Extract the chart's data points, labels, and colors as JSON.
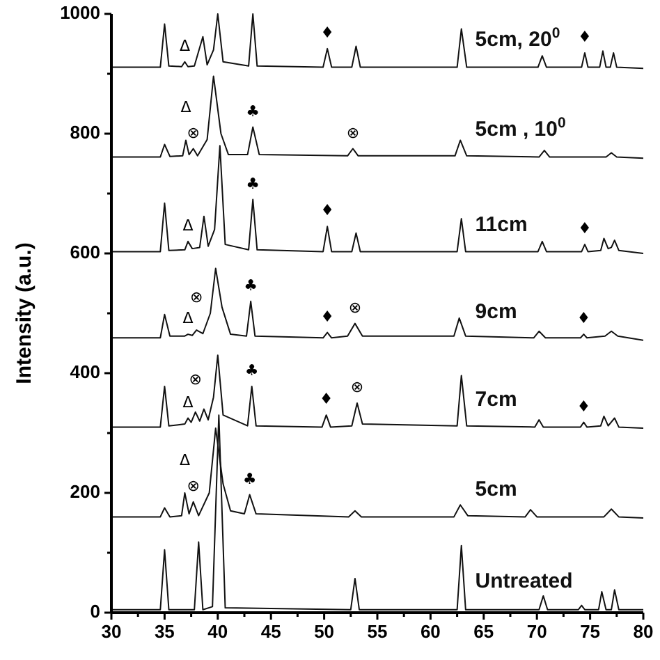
{
  "chart_data": {
    "type": "line",
    "ylabel": "Intensity (a.u.)",
    "xlim": [
      30,
      80
    ],
    "ylim": [
      0,
      1000
    ],
    "xticks": [
      30,
      {
        "value": 32.5,
        "label": null
      },
      35,
      {
        "value": 37.5,
        "label": null
      },
      40,
      {
        "value": 42.5,
        "label": null
      },
      45,
      {
        "value": 47.5,
        "label": null
      },
      50,
      {
        "value": 52.5,
        "label": null
      },
      55,
      {
        "value": 57.5,
        "label": null
      },
      60,
      {
        "value": 62.5,
        "label": null
      },
      65,
      {
        "value": 67.5,
        "label": null
      },
      70,
      {
        "value": 72.5,
        "label": null
      },
      75,
      {
        "value": 77.5,
        "label": null
      },
      80
    ],
    "yticks": [
      0,
      {
        "value": 100,
        "label": null
      },
      200,
      {
        "value": 300,
        "label": null
      },
      400,
      {
        "value": 500,
        "label": null
      },
      600,
      {
        "value": 700,
        "label": null
      },
      800,
      {
        "value": 900,
        "label": null
      },
      1000
    ],
    "series": [
      {
        "name": "Untreated",
        "color": "#111111",
        "x": [
          30,
          34.6,
          35,
          35.4,
          37.8,
          38.2,
          38.6,
          39.5,
          40.1,
          40.7,
          52.5,
          52.9,
          53.3,
          62.5,
          62.9,
          63.3,
          70.2,
          70.6,
          71.0,
          73.9,
          74.2,
          74.5,
          75.8,
          76.1,
          76.5,
          77.0,
          77.3,
          77.7,
          80
        ],
        "values": [
          5,
          5,
          105,
          5,
          5,
          118,
          5,
          10,
          330,
          8,
          5,
          57,
          5,
          5,
          112,
          5,
          5,
          28,
          5,
          5,
          12,
          5,
          5,
          35,
          5,
          5,
          38,
          5,
          5
        ]
      },
      {
        "name": "5cm",
        "color": "#111111",
        "x": [
          30,
          34.6,
          35,
          35.5,
          36.6,
          36.9,
          37.3,
          37.7,
          38.2,
          39.2,
          39.8,
          40.5,
          41.2,
          42.5,
          43.0,
          43.6,
          52.3,
          52.9,
          53.5,
          62.2,
          62.8,
          63.5,
          68.9,
          69.4,
          70,
          76.3,
          77,
          77.7,
          80
        ],
        "values": [
          160,
          160,
          175,
          160,
          162,
          200,
          165,
          185,
          162,
          200,
          308,
          215,
          170,
          165,
          197,
          165,
          160,
          170,
          160,
          160,
          180,
          162,
          160,
          172,
          160,
          160,
          173,
          160,
          158
        ]
      },
      {
        "name": "7cm",
        "color": "#111111",
        "x": [
          30,
          34.6,
          35,
          35.4,
          36.9,
          37.2,
          37.5,
          37.9,
          38.3,
          38.7,
          39.1,
          39.6,
          40.0,
          40.5,
          42.8,
          43.2,
          43.6,
          49.8,
          50.2,
          50.6,
          52.6,
          53.1,
          53.6,
          62.5,
          62.9,
          63.4,
          69.8,
          70.2,
          70.6,
          74.1,
          74.4,
          74.7,
          76.0,
          76.3,
          76.7,
          77.3,
          77.7,
          80
        ],
        "values": [
          310,
          310,
          378,
          312,
          315,
          325,
          318,
          335,
          320,
          340,
          322,
          360,
          430,
          330,
          312,
          378,
          312,
          310,
          330,
          310,
          312,
          350,
          315,
          312,
          396,
          312,
          310,
          322,
          310,
          310,
          318,
          310,
          312,
          328,
          312,
          325,
          310,
          308
        ]
      },
      {
        "name": "9cm",
        "color": "#111111",
        "x": [
          30,
          34.6,
          35,
          35.5,
          36.9,
          37.2,
          37.6,
          38.0,
          38.6,
          39.3,
          39.8,
          40.4,
          41.2,
          42.7,
          43.1,
          43.5,
          49.9,
          50.3,
          50.7,
          52.2,
          52.9,
          53.6,
          62.2,
          62.7,
          63.3,
          69.7,
          70.2,
          70.8,
          74.1,
          74.4,
          74.7,
          76.4,
          77,
          77.6,
          80
        ],
        "values": [
          459,
          459,
          498,
          462,
          462,
          465,
          463,
          472,
          466,
          500,
          575,
          510,
          465,
          462,
          520,
          462,
          459,
          468,
          459,
          462,
          483,
          462,
          462,
          492,
          462,
          459,
          470,
          459,
          459,
          465,
          459,
          462,
          470,
          462,
          455
        ]
      },
      {
        "name": "11cm",
        "color": "#111111",
        "x": [
          30,
          34.6,
          35,
          35.4,
          36.9,
          37.2,
          37.6,
          38.3,
          38.7,
          39.1,
          39.7,
          40.2,
          40.7,
          42.9,
          43.3,
          43.7,
          49.9,
          50.3,
          50.7,
          52.6,
          53.0,
          53.4,
          62.5,
          62.9,
          63.3,
          70.1,
          70.5,
          70.9,
          74.2,
          74.5,
          74.8,
          76.0,
          76.3,
          76.7,
          77.0,
          77.3,
          77.7,
          80
        ],
        "values": [
          603,
          603,
          684,
          605,
          606,
          620,
          608,
          610,
          662,
          612,
          640,
          780,
          615,
          606,
          690,
          606,
          603,
          645,
          603,
          603,
          634,
          603,
          603,
          658,
          603,
          603,
          620,
          603,
          603,
          615,
          603,
          605,
          625,
          608,
          610,
          622,
          605,
          600
        ]
      },
      {
        "name": "5cm , 10$^{0}$",
        "color": "#111111",
        "x": [
          30,
          34.6,
          35,
          35.5,
          36.7,
          37.0,
          37.3,
          37.7,
          38.1,
          39.0,
          39.6,
          40.3,
          41.0,
          42.8,
          43.3,
          43.9,
          52.2,
          52.7,
          53.2,
          62.3,
          62.8,
          63.4,
          70.2,
          70.7,
          71.2,
          76.5,
          77,
          77.5,
          80
        ],
        "values": [
          761,
          761,
          782,
          762,
          763,
          789,
          765,
          775,
          763,
          790,
          896,
          800,
          765,
          765,
          811,
          765,
          763,
          775,
          763,
          763,
          789,
          763,
          761,
          772,
          761,
          761,
          768,
          761,
          759
        ]
      },
      {
        "name": "5cm, 20$^{0}$",
        "color": "#111111",
        "x": [
          30,
          34.6,
          35,
          35.4,
          36.6,
          36.9,
          37.2,
          37.8,
          38.6,
          39.0,
          39.6,
          40.0,
          40.5,
          42.9,
          43.3,
          43.7,
          49.9,
          50.3,
          50.7,
          52.6,
          53.0,
          53.4,
          62.5,
          62.9,
          63.4,
          70.1,
          70.5,
          70.9,
          74.2,
          74.5,
          74.8,
          75.9,
          76.2,
          76.5,
          76.9,
          77.2,
          77.5,
          80
        ],
        "values": [
          911,
          911,
          983,
          913,
          912,
          920,
          912,
          913,
          962,
          915,
          940,
          1000,
          920,
          913,
          1000,
          913,
          911,
          942,
          911,
          911,
          946,
          911,
          911,
          975,
          911,
          911,
          930,
          911,
          911,
          935,
          911,
          911,
          938,
          911,
          911,
          935,
          911,
          909
        ]
      }
    ],
    "annotations": [
      {
        "text": "Δ",
        "x": 36.9,
        "y": 920
      },
      {
        "text": "♦",
        "x": 50.3,
        "y": 942
      },
      {
        "text": "♦",
        "x": 74.5,
        "y": 935
      },
      {
        "text": "⊗",
        "x": 37.7,
        "y": 775
      },
      {
        "text": "Δ",
        "x": 37.0,
        "y": 789
      },
      {
        "text": "♣",
        "x": 43.3,
        "y": 811
      },
      {
        "text": "⊗",
        "x": 52.7,
        "y": 775
      },
      {
        "text": "Δ",
        "x": 37.2,
        "y": 620
      },
      {
        "text": "♣",
        "x": 43.3,
        "y": 690
      },
      {
        "text": "♦",
        "x": 50.3,
        "y": 645
      },
      {
        "text": "♦",
        "x": 74.5,
        "y": 615
      },
      {
        "text": "Δ",
        "x": 37.2,
        "y": 465
      },
      {
        "text": "⊗",
        "x": 38.0,
        "y": 472
      },
      {
        "text": "♣",
        "x": 43.1,
        "y": 520
      },
      {
        "text": "♦",
        "x": 50.3,
        "y": 468
      },
      {
        "text": "⊗",
        "x": 52.9,
        "y": 483
      },
      {
        "text": "♦",
        "x": 74.4,
        "y": 465
      },
      {
        "text": "Δ",
        "x": 37.2,
        "y": 325
      },
      {
        "text": "⊗",
        "x": 37.9,
        "y": 335
      },
      {
        "text": "♣",
        "x": 43.2,
        "y": 378
      },
      {
        "text": "♦",
        "x": 50.2,
        "y": 330
      },
      {
        "text": "⊗",
        "x": 53.1,
        "y": 350
      },
      {
        "text": "♦",
        "x": 74.4,
        "y": 318
      },
      {
        "text": "⊗",
        "x": 37.7,
        "y": 185
      },
      {
        "text": "Δ",
        "x": 36.9,
        "y": 200
      },
      {
        "text": "♣",
        "x": 43.0,
        "y": 197
      }
    ]
  }
}
